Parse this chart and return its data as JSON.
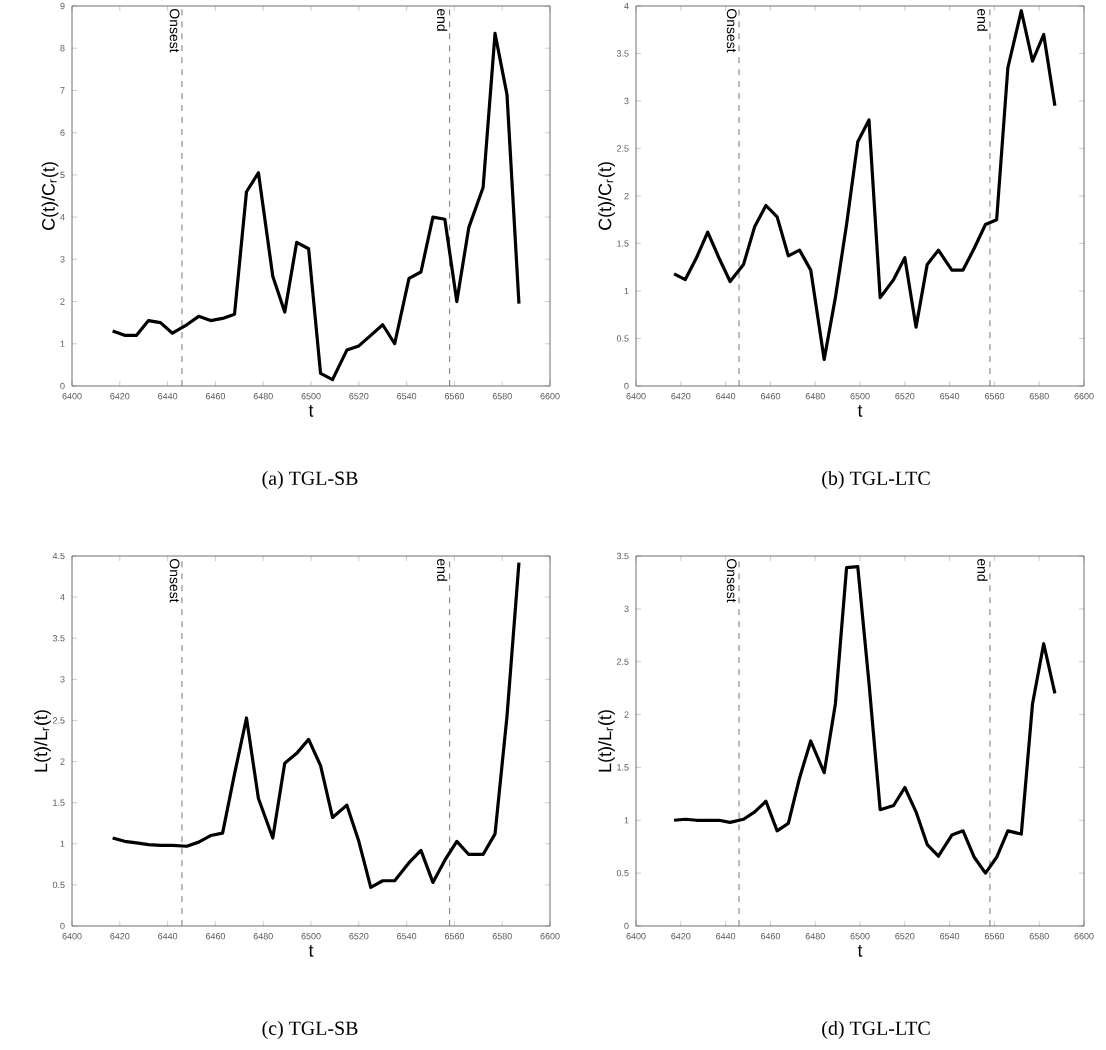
{
  "chart_data": [
    {
      "type": "line",
      "xlabel": "t",
      "ylabel": "C(t)/C$_{r}$(t)",
      "xlim": [
        6400,
        6600
      ],
      "ylim": [
        0,
        9
      ],
      "xticks": [
        6400,
        6420,
        6440,
        6460,
        6480,
        6500,
        6520,
        6540,
        6560,
        6580,
        6600
      ],
      "yticks": [
        0,
        1,
        2,
        3,
        4,
        5,
        6,
        7,
        8,
        9
      ],
      "x": [
        6417,
        6422,
        6427,
        6432,
        6437,
        6442,
        6448,
        6453,
        6458,
        6463,
        6468,
        6473,
        6478,
        6484,
        6489,
        6494,
        6499,
        6504,
        6509,
        6515,
        6520,
        6525,
        6530,
        6535,
        6541,
        6546,
        6551,
        6556,
        6561,
        6566,
        6572,
        6577,
        6582,
        6587
      ],
      "series": [
        {
          "color": "#000000",
          "values": [
            1.3,
            1.2,
            1.2,
            1.55,
            1.5,
            1.25,
            1.45,
            1.65,
            1.55,
            1.6,
            1.7,
            4.6,
            5.05,
            2.6,
            1.75,
            3.4,
            3.25,
            0.3,
            0.15,
            0.85,
            0.95,
            1.2,
            1.45,
            1.0,
            2.55,
            2.7,
            4.0,
            3.95,
            2.0,
            3.75,
            4.7,
            8.35,
            6.9,
            1.95
          ]
        }
      ],
      "ref_lines": [
        {
          "axis": "x",
          "value": 6446,
          "label": "Onsest",
          "color": "#555555",
          "line_style": "dashed"
        },
        {
          "axis": "x",
          "value": 6558,
          "label": "end",
          "color": "#555555",
          "line_style": "dashed"
        }
      ],
      "annotations": [
        "(a)  TGL-SB"
      ]
    },
    {
      "type": "line",
      "xlabel": "t",
      "ylabel": "C(t)/C$_{r}$(t)",
      "xlim": [
        6400,
        6600
      ],
      "ylim": [
        0,
        4
      ],
      "xticks": [
        6400,
        6420,
        6440,
        6460,
        6480,
        6500,
        6520,
        6540,
        6560,
        6580,
        6600
      ],
      "yticks": [
        0,
        0.5,
        1,
        1.5,
        2,
        2.5,
        3,
        3.5,
        4
      ],
      "x": [
        6417,
        6422,
        6427,
        6432,
        6437,
        6442,
        6448,
        6453,
        6458,
        6463,
        6468,
        6473,
        6478,
        6484,
        6489,
        6494,
        6499,
        6504,
        6509,
        6515,
        6520,
        6525,
        6530,
        6535,
        6541,
        6546,
        6551,
        6556,
        6561,
        6566,
        6572,
        6577,
        6582,
        6587
      ],
      "series": [
        {
          "color": "#000000",
          "values": [
            1.18,
            1.12,
            1.35,
            1.62,
            1.35,
            1.1,
            1.28,
            1.68,
            1.9,
            1.78,
            1.37,
            1.43,
            1.22,
            0.28,
            0.93,
            1.7,
            2.57,
            2.8,
            0.93,
            1.12,
            1.35,
            0.62,
            1.28,
            1.43,
            1.22,
            1.22,
            1.45,
            1.7,
            1.75,
            3.35,
            3.95,
            3.42,
            3.7,
            2.95
          ]
        }
      ],
      "ref_lines": [
        {
          "axis": "x",
          "value": 6446,
          "label": "Onsest",
          "color": "#555555",
          "line_style": "dashed"
        },
        {
          "axis": "x",
          "value": 6558,
          "label": "end",
          "color": "#555555",
          "line_style": "dashed"
        }
      ],
      "annotations": [
        "(b)  TGL-LTC"
      ]
    },
    {
      "type": "line",
      "xlabel": "t",
      "ylabel": "L(t)/L$_{r}$(t)",
      "xlim": [
        6400,
        6600
      ],
      "ylim": [
        0,
        4.5
      ],
      "xticks": [
        6400,
        6420,
        6440,
        6460,
        6480,
        6500,
        6520,
        6540,
        6560,
        6580,
        6600
      ],
      "yticks": [
        0,
        0.5,
        1,
        1.5,
        2,
        2.5,
        3,
        3.5,
        4,
        4.5
      ],
      "x": [
        6417,
        6422,
        6427,
        6432,
        6437,
        6442,
        6448,
        6453,
        6458,
        6463,
        6468,
        6473,
        6478,
        6484,
        6489,
        6494,
        6499,
        6504,
        6509,
        6515,
        6520,
        6525,
        6530,
        6535,
        6541,
        6546,
        6551,
        6556,
        6561,
        6566,
        6572,
        6577,
        6582,
        6587
      ],
      "series": [
        {
          "color": "#000000",
          "values": [
            1.07,
            1.03,
            1.01,
            0.99,
            0.98,
            0.98,
            0.97,
            1.02,
            1.1,
            1.13,
            1.85,
            2.53,
            1.55,
            1.07,
            1.98,
            2.1,
            2.27,
            1.95,
            1.32,
            1.47,
            1.03,
            0.47,
            0.55,
            0.55,
            0.77,
            0.92,
            0.53,
            0.8,
            1.03,
            0.87,
            0.87,
            1.12,
            2.55,
            4.42
          ]
        }
      ],
      "ref_lines": [
        {
          "axis": "x",
          "value": 6446,
          "label": "Onsest",
          "color": "#555555",
          "line_style": "dashed"
        },
        {
          "axis": "x",
          "value": 6558,
          "label": "end",
          "color": "#555555",
          "line_style": "dashed"
        }
      ],
      "annotations": [
        "(c)  TGL-SB"
      ]
    },
    {
      "type": "line",
      "xlabel": "t",
      "ylabel": "L(t)/L$_{r}$(t)",
      "xlim": [
        6400,
        6600
      ],
      "ylim": [
        0,
        3.5
      ],
      "xticks": [
        6400,
        6420,
        6440,
        6460,
        6480,
        6500,
        6520,
        6540,
        6560,
        6580,
        6600
      ],
      "yticks": [
        0,
        0.5,
        1,
        1.5,
        2,
        2.5,
        3,
        3.5
      ],
      "x": [
        6417,
        6422,
        6427,
        6432,
        6437,
        6442,
        6448,
        6453,
        6458,
        6463,
        6468,
        6473,
        6478,
        6484,
        6489,
        6494,
        6499,
        6504,
        6509,
        6515,
        6520,
        6525,
        6530,
        6535,
        6541,
        6546,
        6551,
        6556,
        6561,
        6566,
        6572,
        6577,
        6582,
        6587
      ],
      "series": [
        {
          "color": "#000000",
          "values": [
            1.0,
            1.01,
            1.0,
            1.0,
            1.0,
            0.98,
            1.01,
            1.08,
            1.18,
            0.9,
            0.97,
            1.4,
            1.75,
            1.45,
            2.1,
            3.39,
            3.4,
            2.3,
            1.1,
            1.14,
            1.31,
            1.08,
            0.77,
            0.66,
            0.86,
            0.9,
            0.65,
            0.5,
            0.65,
            0.9,
            0.87,
            2.1,
            2.67,
            2.2
          ]
        }
      ],
      "ref_lines": [
        {
          "axis": "x",
          "value": 6446,
          "label": "Onsest",
          "color": "#555555",
          "line_style": "dashed"
        },
        {
          "axis": "x",
          "value": 6558,
          "label": "end",
          "color": "#555555",
          "line_style": "dashed"
        }
      ],
      "annotations": [
        "(d)  TGL-LTC"
      ]
    }
  ]
}
